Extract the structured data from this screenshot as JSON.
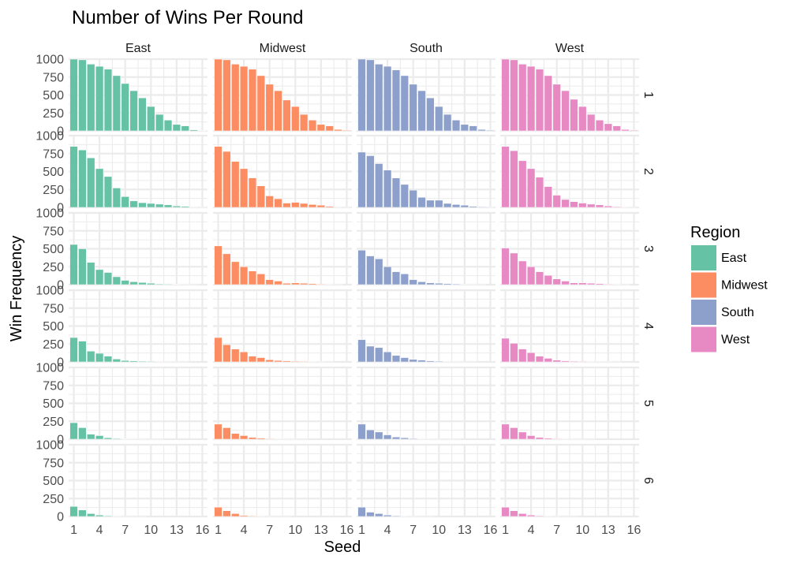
{
  "chart_data": {
    "type": "bar",
    "layout": "facet_grid",
    "title": "Number of Wins Per Round",
    "xlabel": "Seed",
    "ylabel": "Win Frequency",
    "legend": {
      "title": "Region",
      "placement": "right"
    },
    "columns": [
      "East",
      "Midwest",
      "South",
      "West"
    ],
    "rows": [
      "1",
      "2",
      "3",
      "4",
      "5",
      "6"
    ],
    "x": [
      1,
      2,
      3,
      4,
      5,
      6,
      7,
      8,
      9,
      10,
      11,
      12,
      13,
      14,
      15,
      16
    ],
    "x_ticks": [
      "1",
      "4",
      "7",
      "10",
      "13",
      "16"
    ],
    "y_ticks": [
      "0",
      "250",
      "500",
      "750",
      "1000"
    ],
    "ylim": [
      0,
      1000
    ],
    "colors": {
      "East": "#66c2a5",
      "Midwest": "#fc8d62",
      "South": "#8da0cb",
      "West": "#e78ac3"
    },
    "series": [
      {
        "name": "East",
        "rounds": [
          [
            1000,
            990,
            930,
            900,
            860,
            770,
            660,
            560,
            460,
            340,
            230,
            150,
            90,
            70,
            15,
            5
          ],
          [
            850,
            800,
            690,
            540,
            430,
            270,
            150,
            90,
            65,
            55,
            45,
            35,
            20,
            15,
            5,
            2
          ],
          [
            560,
            500,
            310,
            210,
            170,
            110,
            60,
            40,
            30,
            20,
            10,
            8,
            5,
            3,
            1,
            0
          ],
          [
            340,
            290,
            150,
            120,
            80,
            40,
            20,
            15,
            10,
            8,
            5,
            3,
            2,
            1,
            0,
            0
          ],
          [
            230,
            160,
            70,
            50,
            20,
            10,
            5,
            3,
            2,
            1,
            1,
            0,
            0,
            0,
            0,
            0
          ],
          [
            140,
            90,
            40,
            20,
            10,
            5,
            2,
            1,
            1,
            0,
            0,
            0,
            0,
            0,
            0,
            0
          ]
        ]
      },
      {
        "name": "Midwest",
        "rounds": [
          [
            1000,
            990,
            930,
            900,
            860,
            770,
            650,
            560,
            430,
            340,
            230,
            150,
            90,
            70,
            20,
            10
          ],
          [
            850,
            780,
            640,
            540,
            410,
            300,
            160,
            120,
            60,
            70,
            55,
            40,
            30,
            15,
            5,
            2
          ],
          [
            540,
            430,
            320,
            250,
            190,
            150,
            70,
            50,
            20,
            25,
            20,
            15,
            8,
            4,
            1,
            0
          ],
          [
            340,
            240,
            180,
            140,
            80,
            60,
            30,
            20,
            15,
            10,
            8,
            5,
            3,
            1,
            0,
            0
          ],
          [
            210,
            160,
            80,
            50,
            25,
            15,
            8,
            4,
            3,
            2,
            1,
            0,
            0,
            0,
            0,
            0
          ],
          [
            130,
            80,
            40,
            15,
            8,
            4,
            2,
            1,
            1,
            0,
            0,
            0,
            0,
            0,
            0,
            0
          ]
        ]
      },
      {
        "name": "South",
        "rounds": [
          [
            1000,
            990,
            930,
            900,
            850,
            770,
            650,
            560,
            460,
            340,
            230,
            150,
            90,
            70,
            20,
            10
          ],
          [
            770,
            720,
            610,
            520,
            410,
            320,
            240,
            140,
            100,
            100,
            55,
            40,
            30,
            15,
            8,
            3
          ],
          [
            480,
            400,
            360,
            250,
            180,
            150,
            70,
            40,
            25,
            20,
            15,
            10,
            6,
            3,
            1,
            0
          ],
          [
            310,
            220,
            200,
            140,
            90,
            60,
            35,
            25,
            15,
            10,
            6,
            4,
            2,
            1,
            0,
            0
          ],
          [
            210,
            130,
            100,
            60,
            30,
            20,
            10,
            5,
            3,
            2,
            1,
            1,
            0,
            0,
            0,
            0
          ],
          [
            130,
            60,
            40,
            20,
            10,
            5,
            3,
            1,
            1,
            0,
            0,
            0,
            0,
            0,
            0,
            0
          ]
        ]
      },
      {
        "name": "West",
        "rounds": [
          [
            1000,
            990,
            930,
            900,
            860,
            770,
            650,
            560,
            440,
            340,
            230,
            150,
            100,
            70,
            20,
            10
          ],
          [
            850,
            790,
            650,
            540,
            420,
            290,
            170,
            110,
            80,
            60,
            45,
            35,
            20,
            10,
            5,
            2
          ],
          [
            510,
            440,
            330,
            250,
            180,
            130,
            80,
            50,
            25,
            25,
            20,
            15,
            8,
            4,
            1,
            0
          ],
          [
            330,
            260,
            180,
            130,
            80,
            50,
            25,
            15,
            10,
            8,
            5,
            3,
            2,
            1,
            0,
            0
          ],
          [
            210,
            160,
            100,
            50,
            25,
            15,
            8,
            4,
            2,
            1,
            1,
            0,
            0,
            0,
            0,
            0
          ],
          [
            130,
            80,
            40,
            20,
            10,
            5,
            3,
            1,
            1,
            0,
            0,
            0,
            0,
            0,
            0,
            0
          ]
        ]
      }
    ]
  }
}
